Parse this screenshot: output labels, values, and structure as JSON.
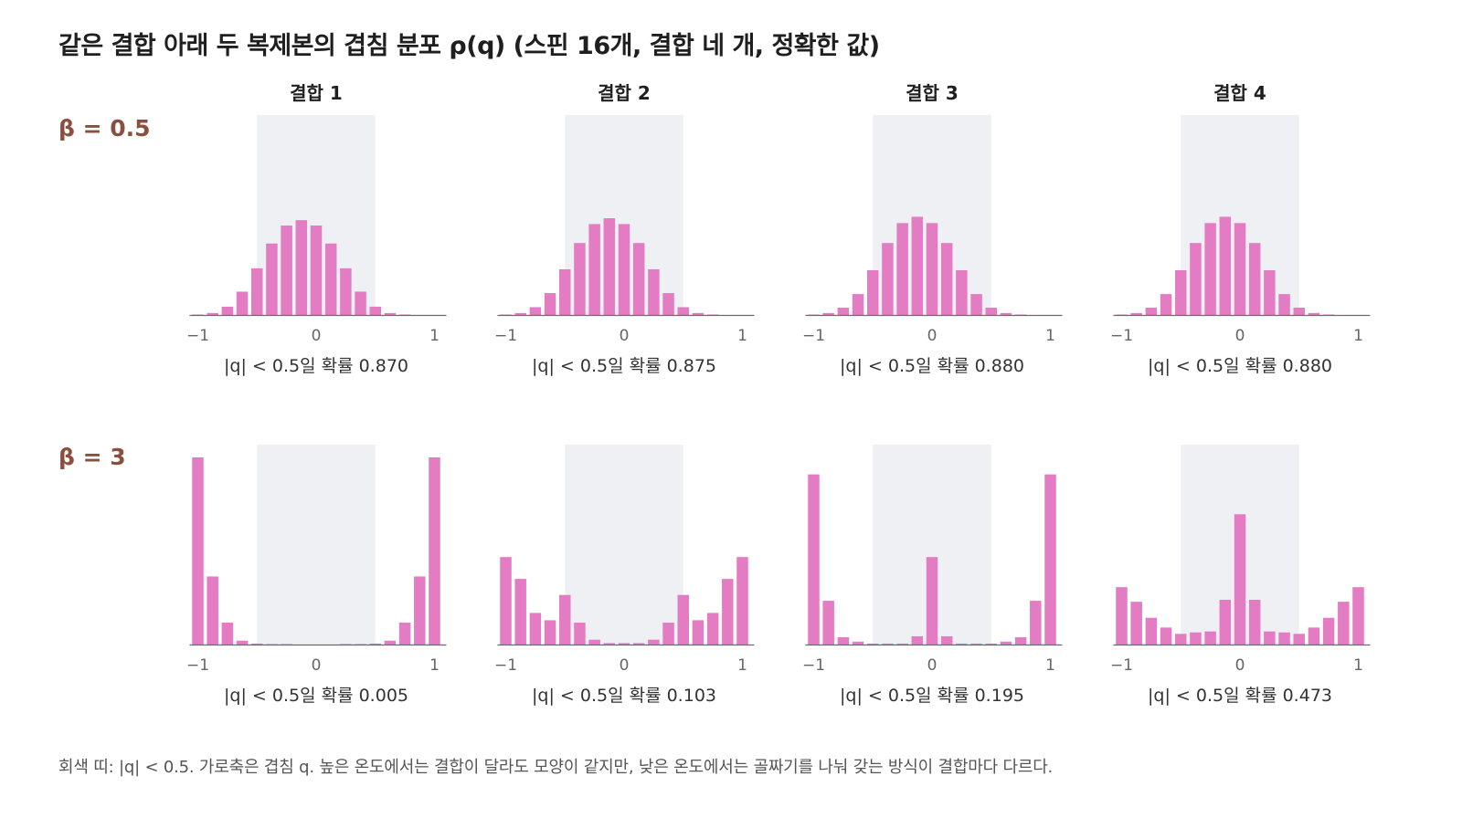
{
  "title": "같은 결합 아래 두 복제본의 겹침 분포 ρ(q) (스핀 16개, 결합 네 개, 정확한 값)",
  "footnote": "회색 띠: |q| < 0.5. 가로축은 겹침 q. 높은 온도에서는 결합이 달라도 모양이 같지만, 낮은 온도에서는 골짜기를 나눠 갖는 방식이 결합마다 다르다.",
  "colors": {
    "bar": "#e37cc3",
    "band": "#eff0f4",
    "axis": "#6b6b6b",
    "tick_text": "#666666",
    "row_label": "#8b4f3f"
  },
  "chart_data": {
    "type": "bar",
    "columns": [
      "결합 1",
      "결합 2",
      "결합 3",
      "결합 4"
    ],
    "rows": [
      "β = 0.5",
      "β = 3"
    ],
    "x": [
      -1,
      -0.875,
      -0.75,
      -0.625,
      -0.5,
      -0.375,
      -0.25,
      -0.125,
      0,
      0.125,
      0.25,
      0.375,
      0.5,
      0.625,
      0.75,
      0.875,
      1
    ],
    "xticks": [
      -1,
      0,
      1
    ],
    "xtick_labels": [
      "−1",
      "0",
      "1"
    ],
    "xlim": [
      -1.07,
      1.1
    ],
    "shaded_band": [
      -0.5,
      0.5
    ],
    "panels": [
      {
        "row": 0,
        "col": 0,
        "caption": "|q| < 0.5일 확률 0.870",
        "values": [
          0.001,
          0.004,
          0.017,
          0.048,
          0.096,
          0.147,
          0.184,
          0.195,
          0.184,
          0.147,
          0.096,
          0.048,
          0.017,
          0.004,
          0.001,
          0.0,
          0.0
        ]
      },
      {
        "row": 0,
        "col": 1,
        "caption": "|q| < 0.5일 확률 0.875",
        "values": [
          0.001,
          0.004,
          0.016,
          0.045,
          0.094,
          0.148,
          0.187,
          0.199,
          0.187,
          0.148,
          0.094,
          0.045,
          0.016,
          0.004,
          0.001,
          0.0,
          0.0
        ]
      },
      {
        "row": 0,
        "col": 2,
        "caption": "|q| < 0.5일 확률 0.880",
        "values": [
          0.001,
          0.004,
          0.015,
          0.043,
          0.092,
          0.148,
          0.189,
          0.202,
          0.189,
          0.148,
          0.092,
          0.043,
          0.015,
          0.004,
          0.001,
          0.0,
          0.0
        ]
      },
      {
        "row": 0,
        "col": 3,
        "caption": "|q| < 0.5일 확률 0.880",
        "values": [
          0.001,
          0.004,
          0.015,
          0.043,
          0.092,
          0.148,
          0.189,
          0.202,
          0.189,
          0.148,
          0.092,
          0.043,
          0.015,
          0.004,
          0.001,
          0.0,
          0.0
        ]
      },
      {
        "row": 1,
        "col": 0,
        "caption": "|q| < 0.5일 확률 0.005",
        "values": [
          0.385,
          0.14,
          0.045,
          0.008,
          0.002,
          0.001,
          0.001,
          0.0,
          0.0,
          0.0,
          0.001,
          0.001,
          0.002,
          0.008,
          0.045,
          0.14,
          0.385
        ]
      },
      {
        "row": 1,
        "col": 1,
        "caption": "|q| < 0.5일 확률 0.103",
        "values": [
          0.18,
          0.135,
          0.065,
          0.05,
          0.102,
          0.045,
          0.01,
          0.003,
          0.003,
          0.003,
          0.01,
          0.045,
          0.102,
          0.05,
          0.065,
          0.135,
          0.18
        ]
      },
      {
        "row": 1,
        "col": 2,
        "caption": "|q| < 0.5일 확률 0.195",
        "values": [
          0.35,
          0.09,
          0.015,
          0.006,
          0.002,
          0.002,
          0.002,
          0.017,
          0.18,
          0.017,
          0.002,
          0.002,
          0.002,
          0.006,
          0.015,
          0.09,
          0.35
        ]
      },
      {
        "row": 1,
        "col": 3,
        "caption": "|q| < 0.5일 확률 0.473",
        "values": [
          0.118,
          0.088,
          0.055,
          0.035,
          0.022,
          0.025,
          0.027,
          0.092,
          0.268,
          0.092,
          0.027,
          0.025,
          0.022,
          0.035,
          0.055,
          0.088,
          0.118
        ]
      }
    ]
  }
}
